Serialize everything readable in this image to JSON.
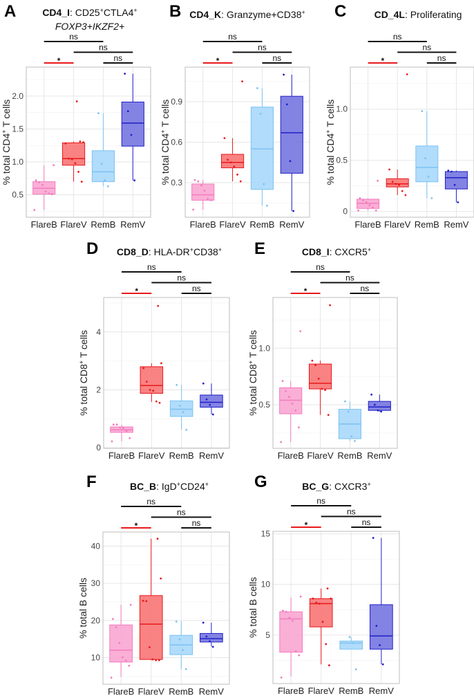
{
  "style": {
    "group_fill": [
      "#f9a6d2",
      "#f87474",
      "#a9d8fb",
      "#7575e0"
    ],
    "group_stroke": [
      "#f27cbf",
      "#e8191b",
      "#7cc2f2",
      "#2020c8"
    ],
    "sig_color": "#e8191b",
    "ns_color": "#111111"
  },
  "chart_data": [
    {
      "type": "box",
      "letter": "A",
      "title": [
        [
          {
            "t": "CD4_I",
            "b": 1
          },
          {
            "t": ": CD25"
          },
          {
            "t": "+",
            "sup": 1
          },
          {
            "t": "CTLA4"
          },
          {
            "t": "+",
            "sup": 1
          }
        ],
        [
          {
            "t": "FOXP3+IKZF2+",
            "i": 1
          }
        ]
      ],
      "ylabel": [
        {
          "t": "% total CD4"
        },
        {
          "t": "+",
          "sup": 1
        },
        {
          "t": " T cells"
        }
      ],
      "categories": [
        "FlareB",
        "FlareV",
        "RemB",
        "RemV"
      ],
      "ylim": [
        0.16,
        2.44
      ],
      "yticks": [
        0.5,
        1.0,
        1.5,
        2.0
      ],
      "ytick_labels": [
        "0.5",
        "1.0",
        "1.5",
        "2.0"
      ],
      "groups": [
        {
          "q1": 0.51,
          "median": 0.6,
          "q3": 0.7,
          "whisker_low": 0.27,
          "whisker_high": 0.95,
          "points": [
            0.27,
            0.51,
            0.52,
            0.55,
            0.65,
            0.69,
            0.72,
            0.95
          ]
        },
        {
          "q1": 0.95,
          "median": 1.05,
          "q3": 1.29,
          "whisker_low": 0.7,
          "whisker_high": 1.31,
          "points": [
            0.7,
            0.85,
            0.98,
            1.04,
            1.05,
            1.28,
            1.3,
            1.31,
            1.92
          ]
        },
        {
          "q1": 0.7,
          "median": 0.85,
          "q3": 1.17,
          "whisker_low": 0.63,
          "whisker_high": 1.74,
          "points": [
            0.63,
            0.72,
            0.97,
            1.74
          ]
        },
        {
          "q1": 1.24,
          "median": 1.59,
          "q3": 1.91,
          "whisker_low": 0.72,
          "whisker_high": 2.34,
          "points": [
            0.72,
            1.41,
            1.77,
            2.34
          ]
        }
      ],
      "comparisons": [
        {
          "pair": [
            0,
            2
          ],
          "label": "ns",
          "level": 2
        },
        {
          "pair": [
            1,
            3
          ],
          "label": "ns",
          "level": 1
        },
        {
          "pair": [
            0,
            1
          ],
          "label": "*",
          "level": 0,
          "significant": true
        },
        {
          "pair": [
            2,
            3
          ],
          "label": "ns",
          "level": 0
        }
      ]
    },
    {
      "type": "box",
      "letter": "B",
      "title": [
        [
          {
            "t": "CD4_K",
            "b": 1
          },
          {
            "t": ": Granzyme+CD38"
          },
          {
            "t": "+",
            "sup": 1
          }
        ]
      ],
      "ylabel": [
        {
          "t": "% total CD4"
        },
        {
          "t": "+",
          "sup": 1
        },
        {
          "t": " T cells"
        }
      ],
      "categories": [
        "FlareB",
        "FlareV",
        "RemB",
        "RemV"
      ],
      "ylim": [
        0.044,
        1.156
      ],
      "yticks": [
        0.3,
        0.6,
        0.9
      ],
      "ytick_labels": [
        "0.3",
        "0.6",
        "0.9"
      ],
      "groups": [
        {
          "q1": 0.17,
          "median": 0.21,
          "q3": 0.29,
          "whisker_low": 0.1,
          "whisker_high": 0.32,
          "points": [
            0.1,
            0.17,
            0.18,
            0.24,
            0.28,
            0.31,
            0.32
          ]
        },
        {
          "q1": 0.41,
          "median": 0.45,
          "q3": 0.51,
          "whisker_low": 0.31,
          "whisker_high": 0.63,
          "points": [
            0.31,
            0.36,
            0.42,
            0.45,
            0.47,
            0.63,
            1.05
          ]
        },
        {
          "q1": 0.25,
          "median": 0.55,
          "q3": 0.86,
          "whisker_low": 0.13,
          "whisker_high": 1.0,
          "points": [
            0.13,
            0.29,
            0.81,
            1.0
          ]
        },
        {
          "q1": 0.37,
          "median": 0.67,
          "q3": 0.94,
          "whisker_low": 0.09,
          "whisker_high": 1.1,
          "points": [
            0.09,
            0.46,
            0.88,
            1.1
          ]
        }
      ],
      "comparisons": [
        {
          "pair": [
            0,
            2
          ],
          "label": "ns",
          "level": 2
        },
        {
          "pair": [
            1,
            3
          ],
          "label": "ns",
          "level": 1
        },
        {
          "pair": [
            0,
            1
          ],
          "label": "*",
          "level": 0,
          "significant": true
        },
        {
          "pair": [
            2,
            3
          ],
          "label": "ns",
          "level": 0
        }
      ]
    },
    {
      "type": "box",
      "letter": "C",
      "title": [
        [
          {
            "t": "CD_4L",
            "b": 1
          },
          {
            "t": ": Proliferating"
          }
        ]
      ],
      "ylabel": [
        {
          "t": "% total CD4"
        },
        {
          "t": "+",
          "sup": 1
        },
        {
          "t": " T cells"
        }
      ],
      "categories": [
        "FlareB",
        "FlareV",
        "RemB",
        "RemV"
      ],
      "ylim": [
        -0.056,
        1.41
      ],
      "yticks": [
        0,
        0.5,
        1.0
      ],
      "ytick_labels": [
        "0",
        "0.5",
        "1.0"
      ],
      "groups": [
        {
          "q1": 0.03,
          "median": 0.08,
          "q3": 0.12,
          "whisker_low": 0.01,
          "whisker_high": 0.13,
          "points": [
            0.01,
            0.01,
            0.04,
            0.06,
            0.09,
            0.11,
            0.13,
            0.3
          ]
        },
        {
          "q1": 0.24,
          "median": 0.27,
          "q3": 0.32,
          "whisker_low": 0.16,
          "whisker_high": 0.41,
          "points": [
            0.16,
            0.2,
            0.26,
            0.27,
            0.29,
            0.41,
            1.34
          ]
        },
        {
          "q1": 0.29,
          "median": 0.43,
          "q3": 0.64,
          "whisker_low": 0.13,
          "whisker_high": 0.98,
          "points": [
            0.13,
            0.34,
            0.52,
            0.98
          ]
        },
        {
          "q1": 0.22,
          "median": 0.33,
          "q3": 0.39,
          "whisker_low": 0.09,
          "whisker_high": 0.4,
          "points": [
            0.09,
            0.26,
            0.39,
            0.4
          ]
        }
      ],
      "comparisons": [
        {
          "pair": [
            0,
            2
          ],
          "label": "ns",
          "level": 2
        },
        {
          "pair": [
            1,
            3
          ],
          "label": "ns",
          "level": 1
        },
        {
          "pair": [
            0,
            1
          ],
          "label": "*",
          "level": 0,
          "significant": true
        },
        {
          "pair": [
            2,
            3
          ],
          "label": "ns",
          "level": 0
        }
      ]
    },
    {
      "type": "box",
      "letter": "D",
      "title": [
        [
          {
            "t": "CD8_D",
            "b": 1
          },
          {
            "t": ": HLA-DR"
          },
          {
            "t": "+",
            "sup": 1
          },
          {
            "t": "CD38"
          },
          {
            "t": "+",
            "sup": 1
          }
        ]
      ],
      "ylabel": [
        {
          "t": "% total CD8"
        },
        {
          "t": "+",
          "sup": 1
        },
        {
          "t": " T cells"
        }
      ],
      "categories": [
        "FlareB",
        "FlareV",
        "RemB",
        "RemV"
      ],
      "ylim": [
        -0.02,
        5.19
      ],
      "yticks": [
        0,
        2,
        4
      ],
      "ytick_labels": [
        "0",
        "2",
        "4"
      ],
      "groups": [
        {
          "q1": 0.53,
          "median": 0.62,
          "q3": 0.72,
          "whisker_low": 0.22,
          "whisker_high": 0.8,
          "points": [
            0.22,
            0.33,
            0.58,
            0.68,
            0.7,
            0.8,
            0.8
          ]
        },
        {
          "q1": 1.88,
          "median": 2.15,
          "q3": 2.8,
          "whisker_low": 1.58,
          "whisker_high": 2.92,
          "points": [
            1.55,
            1.6,
            1.97,
            2.0,
            2.28,
            2.75,
            2.92,
            4.9
          ]
        },
        {
          "q1": 1.08,
          "median": 1.33,
          "q3": 1.62,
          "whisker_low": 0.62,
          "whisker_high": 2.17,
          "points": [
            0.62,
            1.23,
            1.45,
            2.17
          ]
        },
        {
          "q1": 1.4,
          "median": 1.57,
          "q3": 1.82,
          "whisker_low": 1.15,
          "whisker_high": 2.22,
          "points": [
            1.15,
            1.48,
            1.67,
            2.22
          ]
        }
      ],
      "comparisons": [
        {
          "pair": [
            0,
            2
          ],
          "label": "ns",
          "level": 2
        },
        {
          "pair": [
            1,
            3
          ],
          "label": "ns",
          "level": 1
        },
        {
          "pair": [
            0,
            1
          ],
          "label": "*",
          "level": 0,
          "significant": true
        },
        {
          "pair": [
            2,
            3
          ],
          "label": "ns",
          "level": 0
        }
      ]
    },
    {
      "type": "box",
      "letter": "E",
      "title": [
        [
          {
            "t": "CD8_I",
            "b": 1
          },
          {
            "t": ": CXCR5"
          },
          {
            "t": "+",
            "sup": 1
          }
        ]
      ],
      "ylabel": [
        {
          "t": "% total CD8"
        },
        {
          "t": "+",
          "sup": 1
        },
        {
          "t": " T cells"
        }
      ],
      "categories": [
        "FlareB",
        "FlareV",
        "RemB",
        "RemV"
      ],
      "ylim": [
        0.115,
        1.448
      ],
      "yticks": [
        0.5,
        1.0
      ],
      "ytick_labels": [
        "0.5",
        "1.0"
      ],
      "groups": [
        {
          "q1": 0.42,
          "median": 0.54,
          "q3": 0.65,
          "whisker_low": 0.17,
          "whisker_high": 0.71,
          "points": [
            0.17,
            0.3,
            0.45,
            0.51,
            0.57,
            0.62,
            0.71,
            1.15
          ]
        },
        {
          "q1": 0.64,
          "median": 0.69,
          "q3": 0.86,
          "whisker_low": 0.41,
          "whisker_high": 0.89,
          "points": [
            0.41,
            0.63,
            0.64,
            0.73,
            0.85,
            0.89,
            1.38
          ]
        },
        {
          "q1": 0.2,
          "median": 0.33,
          "q3": 0.46,
          "whisker_low": 0.18,
          "whisker_high": 0.53,
          "points": [
            0.18,
            0.22,
            0.44,
            0.53
          ]
        },
        {
          "q1": 0.45,
          "median": 0.48,
          "q3": 0.53,
          "whisker_low": 0.44,
          "whisker_high": 0.59,
          "points": [
            0.44,
            0.45,
            0.5,
            0.59
          ]
        }
      ],
      "comparisons": [
        {
          "pair": [
            0,
            2
          ],
          "label": "ns",
          "level": 2
        },
        {
          "pair": [
            1,
            3
          ],
          "label": "ns",
          "level": 1
        },
        {
          "pair": [
            0,
            1
          ],
          "label": "*",
          "level": 0,
          "significant": true
        },
        {
          "pair": [
            2,
            3
          ],
          "label": "ns",
          "level": 0
        }
      ]
    },
    {
      "type": "box",
      "letter": "F",
      "title": [
        [
          {
            "t": "BC_B",
            "b": 1
          },
          {
            "t": ": IgD"
          },
          {
            "t": "+",
            "sup": 1
          },
          {
            "t": "CD24"
          },
          {
            "t": "+",
            "sup": 1
          }
        ]
      ],
      "ylabel": [
        {
          "t": "% total B cells"
        }
      ],
      "categories": [
        "FlareB",
        "FlareV",
        "RemB",
        "RemV"
      ],
      "ylim": [
        2.83,
        43.8
      ],
      "yticks": [
        10,
        20,
        30,
        40
      ],
      "ytick_labels": [
        "10",
        "20",
        "30",
        "40"
      ],
      "groups": [
        {
          "q1": 8.8,
          "median": 12.0,
          "q3": 18.8,
          "whisker_low": 4.8,
          "whisker_high": 24.2,
          "points": [
            4.6,
            7.8,
            9.2,
            10.1,
            13.9,
            18.2,
            20.4,
            24.2
          ]
        },
        {
          "q1": 9.5,
          "median": 19.0,
          "q3": 26.7,
          "whisker_low": 9.3,
          "whisker_high": 42.0,
          "points": [
            9.3,
            9.3,
            9.5,
            12.8,
            25.2,
            25.3,
            31.3,
            42.0
          ]
        },
        {
          "q1": 10.8,
          "median": 13.4,
          "q3": 16.0,
          "whisker_low": 6.8,
          "whisker_high": 19.8,
          "points": [
            6.9,
            12.0,
            14.9,
            19.7
          ]
        },
        {
          "q1": 14.2,
          "median": 15.1,
          "q3": 16.5,
          "whisker_low": 13.0,
          "whisker_high": 19.4,
          "points": [
            12.9,
            14.4,
            15.7,
            19.4
          ]
        }
      ],
      "comparisons": [
        {
          "pair": [
            0,
            2
          ],
          "label": "ns",
          "level": 2
        },
        {
          "pair": [
            1,
            3
          ],
          "label": "ns",
          "level": 1
        },
        {
          "pair": [
            0,
            1
          ],
          "label": "*",
          "level": 0,
          "significant": true
        },
        {
          "pair": [
            2,
            3
          ],
          "label": "ns",
          "level": 0
        }
      ]
    },
    {
      "type": "box",
      "letter": "G",
      "title": [
        [
          {
            "t": "BC_G",
            "b": 1
          },
          {
            "t": ": CXCR3"
          },
          {
            "t": "+",
            "sup": 1
          }
        ]
      ],
      "ylabel": [
        {
          "t": "% total B cells"
        }
      ],
      "categories": [
        "FlareB",
        "FlareV",
        "RemB",
        "RemV"
      ],
      "ylim": [
        0.2,
        15.25
      ],
      "yticks": [
        5,
        10,
        15
      ],
      "ytick_labels": [
        "5",
        "10",
        "15"
      ],
      "groups": [
        {
          "q1": 3.3,
          "median": 6.6,
          "q3": 7.3,
          "whisker_low": 0.9,
          "whisker_high": 8.7,
          "points": [
            0.8,
            3.0,
            3.4,
            6.4,
            6.7,
            7.3,
            7.4,
            8.8
          ]
        },
        {
          "q1": 5.8,
          "median": 8.1,
          "q3": 8.6,
          "whisker_low": 2.1,
          "whisker_high": 9.6,
          "points": [
            2.0,
            4.1,
            6.3,
            8.1,
            8.2,
            8.6,
            8.6,
            9.6
          ]
        },
        {
          "q1": 3.6,
          "median": 4.2,
          "q3": 4.4,
          "whisker_low": 3.6,
          "whisker_high": 4.8,
          "points": [
            1.6,
            4.2,
            4.8
          ]
        },
        {
          "q1": 3.6,
          "median": 4.9,
          "q3": 8.0,
          "whisker_low": 2.1,
          "whisker_high": 14.6,
          "points": [
            2.1,
            4.0,
            5.9,
            14.6
          ]
        }
      ],
      "comparisons": [
        {
          "pair": [
            0,
            2
          ],
          "label": "ns",
          "level": 2
        },
        {
          "pair": [
            1,
            3
          ],
          "label": "ns",
          "level": 1
        },
        {
          "pair": [
            0,
            1
          ],
          "label": "*",
          "level": 0,
          "significant": true
        },
        {
          "pair": [
            2,
            3
          ],
          "label": "ns",
          "level": 0
        }
      ]
    }
  ]
}
